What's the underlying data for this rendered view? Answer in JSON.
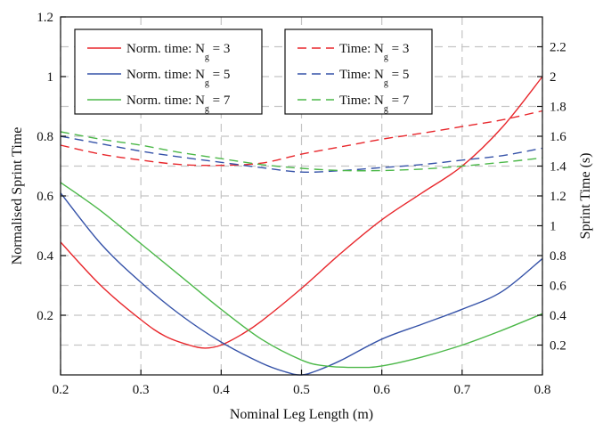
{
  "chart_data": {
    "type": "line",
    "xlabel": "Nominal Leg Length (m)",
    "ylabel_left": "Normalised Sprint Time",
    "ylabel_right": "Sprint Time (s)",
    "xlim": [
      0.2,
      0.8
    ],
    "ylim_left": [
      0,
      1.2
    ],
    "ylim_right": [
      0,
      2.4
    ],
    "x_ticks": [
      "0.2",
      "0.3",
      "0.4",
      "0.5",
      "0.6",
      "0.7",
      "0.8"
    ],
    "y_ticks_left": [
      "0.2",
      "0.4",
      "0.6",
      "0.8",
      "1",
      "1.2"
    ],
    "y_ticks_right": [
      "0.2",
      "0.4",
      "0.6",
      "0.8",
      "1",
      "1.2",
      "1.4",
      "1.6",
      "1.8",
      "2",
      "2.2"
    ],
    "grid": true,
    "legend_left": {
      "placement": "top-left",
      "entries": [
        {
          "prefix": "Norm. time: N",
          "sub": "g",
          "suffix": " = 3",
          "series": 0
        },
        {
          "prefix": "Norm. time: N",
          "sub": "g",
          "suffix": " = 5",
          "series": 1
        },
        {
          "prefix": "Norm. time: N",
          "sub": "g",
          "suffix": " = 7",
          "series": 2
        }
      ]
    },
    "legend_right": {
      "placement": "top-center",
      "entries": [
        {
          "prefix": "Time: N",
          "sub": "g",
          "suffix": " = 3",
          "series": 3
        },
        {
          "prefix": "Time: N",
          "sub": "g",
          "suffix": " = 5",
          "series": 4
        },
        {
          "prefix": "Time: N",
          "sub": "g",
          "suffix": " = 7",
          "series": 5
        }
      ]
    },
    "series": [
      {
        "axis": "left",
        "style": "solid",
        "color": "#e8272c",
        "x": [
          0.2,
          0.25,
          0.3,
          0.33,
          0.36,
          0.38,
          0.4,
          0.425,
          0.45,
          0.5,
          0.55,
          0.6,
          0.65,
          0.7,
          0.75,
          0.8
        ],
        "y": [
          0.445,
          0.3,
          0.185,
          0.13,
          0.1,
          0.09,
          0.1,
          0.135,
          0.18,
          0.29,
          0.41,
          0.52,
          0.61,
          0.7,
          0.83,
          1.0
        ]
      },
      {
        "axis": "left",
        "style": "solid",
        "color": "#3552a8",
        "x": [
          0.2,
          0.25,
          0.3,
          0.35,
          0.4,
          0.45,
          0.48,
          0.5,
          0.52,
          0.55,
          0.6,
          0.65,
          0.7,
          0.75,
          0.8
        ],
        "y": [
          0.61,
          0.44,
          0.31,
          0.2,
          0.11,
          0.04,
          0.01,
          0.0,
          0.015,
          0.05,
          0.12,
          0.17,
          0.22,
          0.28,
          0.39
        ]
      },
      {
        "axis": "left",
        "style": "solid",
        "color": "#4cb849",
        "x": [
          0.2,
          0.25,
          0.3,
          0.35,
          0.4,
          0.45,
          0.5,
          0.53,
          0.57,
          0.6,
          0.65,
          0.7,
          0.75,
          0.8
        ],
        "y": [
          0.645,
          0.55,
          0.44,
          0.33,
          0.22,
          0.12,
          0.05,
          0.03,
          0.025,
          0.03,
          0.06,
          0.1,
          0.15,
          0.205
        ]
      },
      {
        "axis": "right",
        "style": "dashed",
        "color": "#e8272c",
        "x": [
          0.2,
          0.25,
          0.3,
          0.35,
          0.4,
          0.45,
          0.5,
          0.55,
          0.6,
          0.65,
          0.7,
          0.75,
          0.8
        ],
        "y": [
          1.54,
          1.48,
          1.44,
          1.41,
          1.405,
          1.42,
          1.48,
          1.53,
          1.58,
          1.62,
          1.665,
          1.71,
          1.77
        ]
      },
      {
        "axis": "right",
        "style": "dashed",
        "color": "#3552a8",
        "x": [
          0.2,
          0.25,
          0.3,
          0.35,
          0.4,
          0.45,
          0.5,
          0.55,
          0.6,
          0.65,
          0.7,
          0.75,
          0.8
        ],
        "y": [
          1.6,
          1.55,
          1.5,
          1.46,
          1.425,
          1.39,
          1.36,
          1.37,
          1.39,
          1.41,
          1.44,
          1.47,
          1.52
        ]
      },
      {
        "axis": "right",
        "style": "dashed",
        "color": "#4cb849",
        "x": [
          0.2,
          0.25,
          0.3,
          0.35,
          0.4,
          0.45,
          0.5,
          0.55,
          0.6,
          0.65,
          0.7,
          0.75,
          0.8
        ],
        "y": [
          1.63,
          1.58,
          1.54,
          1.49,
          1.45,
          1.41,
          1.385,
          1.37,
          1.37,
          1.38,
          1.4,
          1.425,
          1.455
        ]
      }
    ]
  }
}
